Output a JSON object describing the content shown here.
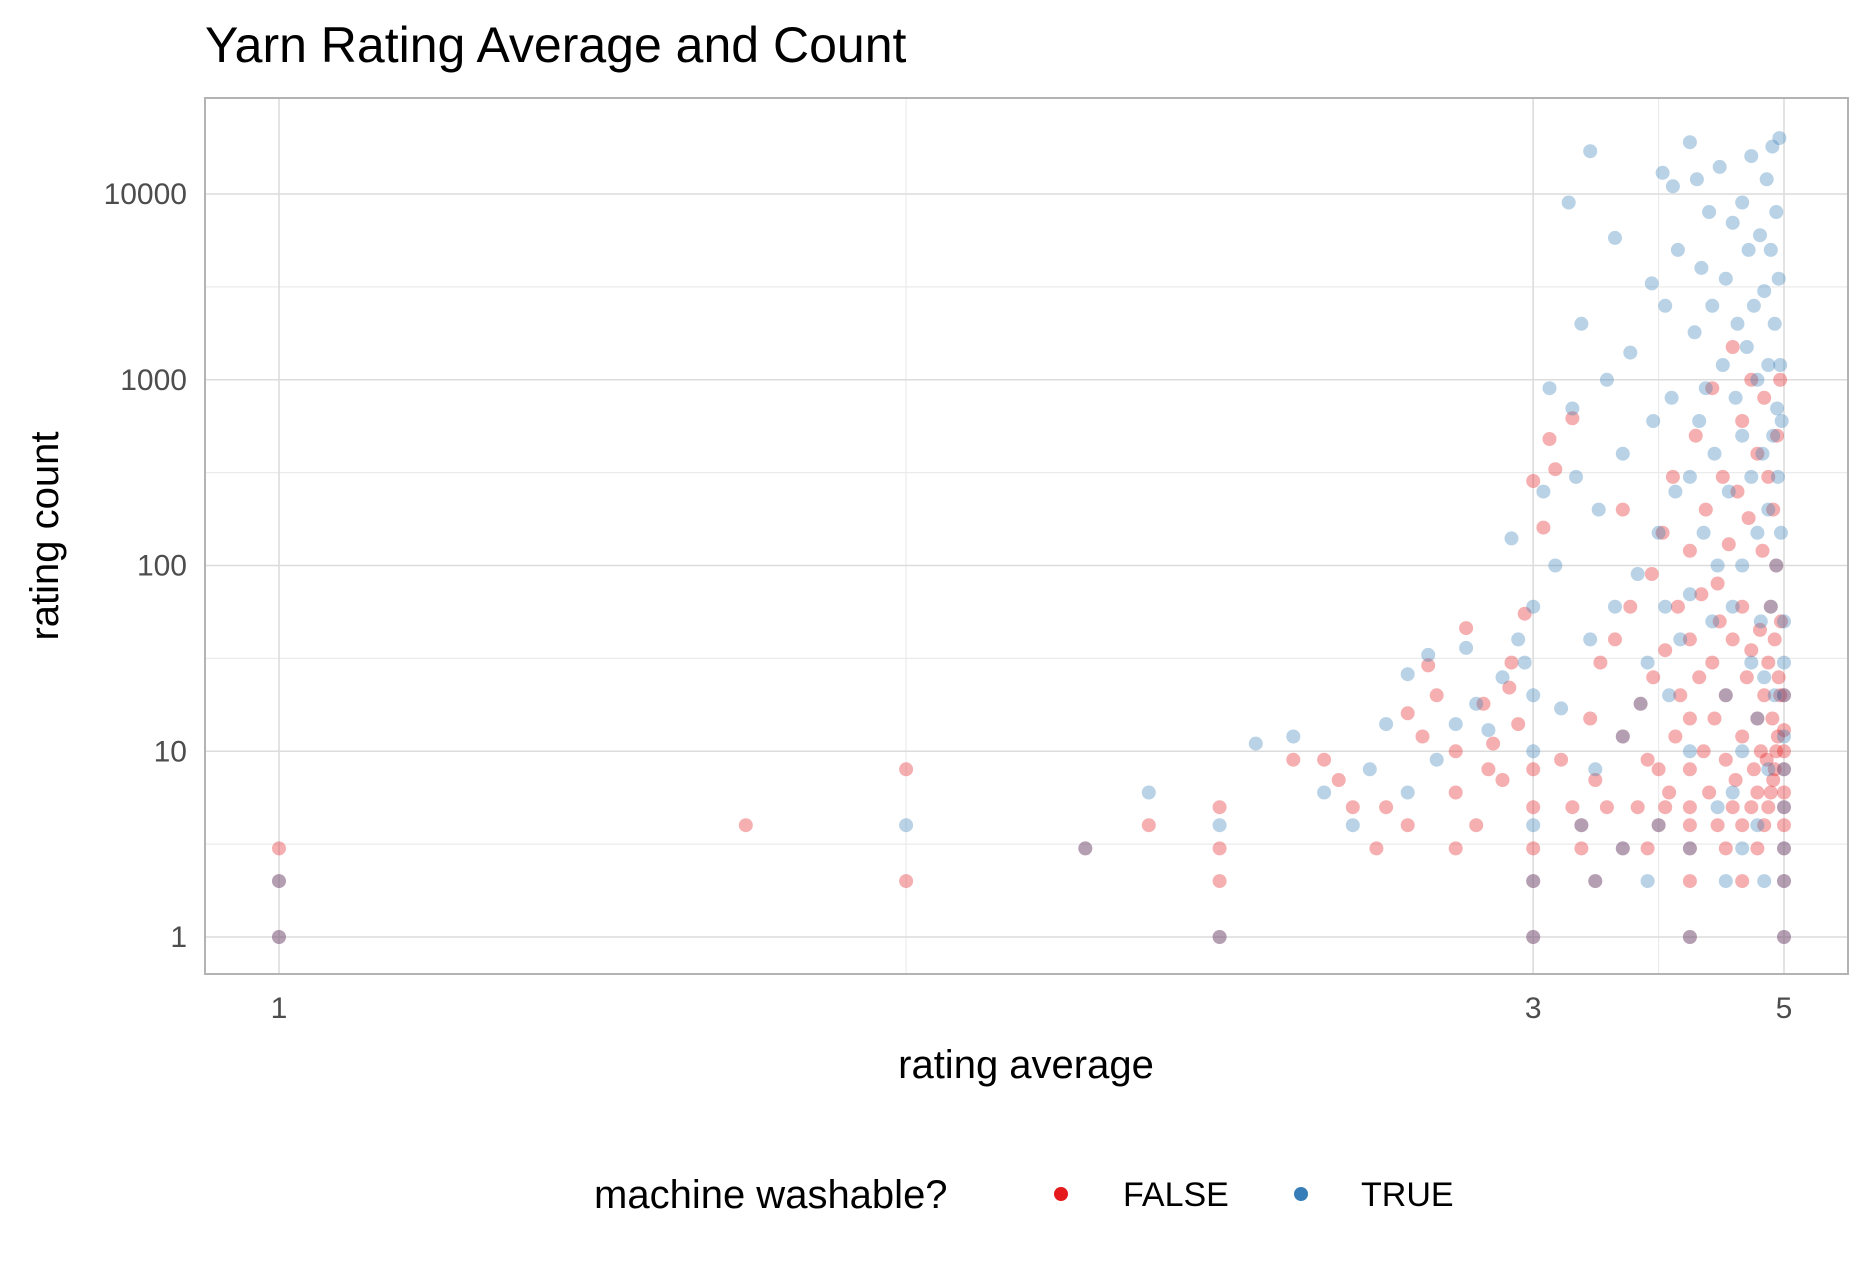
{
  "chart_data": {
    "type": "scatter",
    "title": "Yarn Rating Average and Count",
    "xlabel": "rating average",
    "ylabel": "rating count",
    "x_scale": "reciprocal",
    "y_scale": "log10",
    "xlim": [
      0.85,
      5.15
    ],
    "ylim": [
      0.6,
      30000
    ],
    "x_ticks": [
      1,
      3,
      5
    ],
    "x_tick_labels": [
      "1",
      "3",
      "5"
    ],
    "y_ticks": [
      1,
      10,
      100,
      1000,
      10000
    ],
    "y_tick_labels": [
      "1",
      "10",
      "100",
      "1000",
      "10000"
    ],
    "grid": true,
    "legend_position": "bottom",
    "legend_title": "machine washable?",
    "series": [
      {
        "name": "FALSE",
        "color": "#e41a1c",
        "points": [
          [
            1.0,
            1
          ],
          [
            1.0,
            2
          ],
          [
            1.0,
            3
          ],
          [
            1.33,
            4
          ],
          [
            1.5,
            2
          ],
          [
            1.5,
            8
          ],
          [
            1.75,
            3
          ],
          [
            1.86,
            4
          ],
          [
            2.0,
            1
          ],
          [
            2.0,
            2
          ],
          [
            2.0,
            3
          ],
          [
            2.0,
            5
          ],
          [
            2.17,
            9
          ],
          [
            2.25,
            9
          ],
          [
            2.29,
            7
          ],
          [
            2.33,
            5
          ],
          [
            2.4,
            3
          ],
          [
            2.43,
            5
          ],
          [
            2.5,
            4
          ],
          [
            2.5,
            16
          ],
          [
            2.55,
            12
          ],
          [
            2.57,
            29
          ],
          [
            2.6,
            20
          ],
          [
            2.67,
            3
          ],
          [
            2.67,
            6
          ],
          [
            2.67,
            10
          ],
          [
            2.71,
            46
          ],
          [
            2.75,
            4
          ],
          [
            2.78,
            18
          ],
          [
            2.8,
            8
          ],
          [
            2.82,
            11
          ],
          [
            2.86,
            7
          ],
          [
            2.89,
            22
          ],
          [
            2.9,
            30
          ],
          [
            2.93,
            14
          ],
          [
            2.96,
            55
          ],
          [
            3.0,
            1
          ],
          [
            3.0,
            2
          ],
          [
            3.0,
            3
          ],
          [
            3.0,
            5
          ],
          [
            3.0,
            8
          ],
          [
            3.0,
            285
          ],
          [
            3.05,
            160
          ],
          [
            3.08,
            480
          ],
          [
            3.11,
            330
          ],
          [
            3.14,
            9
          ],
          [
            3.2,
            5
          ],
          [
            3.2,
            620
          ],
          [
            3.25,
            3
          ],
          [
            3.25,
            4
          ],
          [
            3.3,
            15
          ],
          [
            3.33,
            2
          ],
          [
            3.33,
            7
          ],
          [
            3.36,
            30
          ],
          [
            3.4,
            5
          ],
          [
            3.45,
            40
          ],
          [
            3.5,
            3
          ],
          [
            3.5,
            12
          ],
          [
            3.5,
            200
          ],
          [
            3.55,
            60
          ],
          [
            3.6,
            5
          ],
          [
            3.62,
            18
          ],
          [
            3.67,
            3
          ],
          [
            3.67,
            9
          ],
          [
            3.7,
            90
          ],
          [
            3.71,
            25
          ],
          [
            3.75,
            4
          ],
          [
            3.75,
            8
          ],
          [
            3.78,
            150
          ],
          [
            3.8,
            5
          ],
          [
            3.8,
            35
          ],
          [
            3.83,
            6
          ],
          [
            3.86,
            300
          ],
          [
            3.88,
            12
          ],
          [
            3.9,
            60
          ],
          [
            3.92,
            20
          ],
          [
            4.0,
            1
          ],
          [
            4.0,
            2
          ],
          [
            4.0,
            3
          ],
          [
            4.0,
            4
          ],
          [
            4.0,
            5
          ],
          [
            4.0,
            8
          ],
          [
            4.0,
            15
          ],
          [
            4.0,
            40
          ],
          [
            4.0,
            120
          ],
          [
            4.05,
            500
          ],
          [
            4.08,
            25
          ],
          [
            4.1,
            70
          ],
          [
            4.12,
            10
          ],
          [
            4.14,
            200
          ],
          [
            4.17,
            6
          ],
          [
            4.2,
            30
          ],
          [
            4.2,
            900
          ],
          [
            4.22,
            15
          ],
          [
            4.25,
            4
          ],
          [
            4.25,
            80
          ],
          [
            4.27,
            50
          ],
          [
            4.3,
            300
          ],
          [
            4.33,
            3
          ],
          [
            4.33,
            9
          ],
          [
            4.33,
            20
          ],
          [
            4.36,
            130
          ],
          [
            4.4,
            5
          ],
          [
            4.4,
            40
          ],
          [
            4.4,
            1500
          ],
          [
            4.43,
            7
          ],
          [
            4.45,
            250
          ],
          [
            4.5,
            2
          ],
          [
            4.5,
            4
          ],
          [
            4.5,
            12
          ],
          [
            4.5,
            60
          ],
          [
            4.5,
            600
          ],
          [
            4.55,
            25
          ],
          [
            4.57,
            180
          ],
          [
            4.6,
            5
          ],
          [
            4.6,
            35
          ],
          [
            4.6,
            1000
          ],
          [
            4.63,
            8
          ],
          [
            4.67,
            3
          ],
          [
            4.67,
            6
          ],
          [
            4.67,
            15
          ],
          [
            4.67,
            400
          ],
          [
            4.7,
            45
          ],
          [
            4.71,
            10
          ],
          [
            4.73,
            120
          ],
          [
            4.75,
            4
          ],
          [
            4.75,
            20
          ],
          [
            4.75,
            800
          ],
          [
            4.78,
            9
          ],
          [
            4.8,
            5
          ],
          [
            4.8,
            30
          ],
          [
            4.8,
            300
          ],
          [
            4.83,
            6
          ],
          [
            4.83,
            60
          ],
          [
            4.85,
            15
          ],
          [
            4.86,
            7
          ],
          [
            4.86,
            200
          ],
          [
            4.88,
            8
          ],
          [
            4.88,
            40
          ],
          [
            4.9,
            10
          ],
          [
            4.9,
            100
          ],
          [
            4.91,
            500
          ],
          [
            4.92,
            12
          ],
          [
            4.93,
            25
          ],
          [
            4.95,
            20
          ],
          [
            4.95,
            1000
          ],
          [
            4.96,
            50
          ],
          [
            5.0,
            1
          ],
          [
            5.0,
            2
          ],
          [
            5.0,
            3
          ],
          [
            5.0,
            4
          ],
          [
            5.0,
            5
          ],
          [
            5.0,
            6
          ],
          [
            5.0,
            8
          ],
          [
            5.0,
            10
          ],
          [
            5.0,
            13
          ],
          [
            5.0,
            20
          ]
        ]
      },
      {
        "name": "TRUE",
        "color": "#377eb8",
        "points": [
          [
            1.0,
            1
          ],
          [
            1.0,
            2
          ],
          [
            1.75,
            3
          ],
          [
            1.86,
            6
          ],
          [
            1.5,
            4
          ],
          [
            2.0,
            1
          ],
          [
            2.0,
            4
          ],
          [
            2.08,
            11
          ],
          [
            2.17,
            12
          ],
          [
            2.25,
            6
          ],
          [
            2.33,
            4
          ],
          [
            2.38,
            8
          ],
          [
            2.43,
            14
          ],
          [
            2.5,
            6
          ],
          [
            2.5,
            26
          ],
          [
            2.57,
            33
          ],
          [
            2.6,
            9
          ],
          [
            2.67,
            14
          ],
          [
            2.71,
            36
          ],
          [
            2.75,
            18
          ],
          [
            2.8,
            13
          ],
          [
            2.86,
            25
          ],
          [
            2.9,
            140
          ],
          [
            2.93,
            40
          ],
          [
            2.96,
            30
          ],
          [
            3.0,
            1
          ],
          [
            3.0,
            2
          ],
          [
            3.0,
            4
          ],
          [
            3.0,
            10
          ],
          [
            3.0,
            20
          ],
          [
            3.0,
            60
          ],
          [
            3.05,
            250
          ],
          [
            3.08,
            900
          ],
          [
            3.11,
            100
          ],
          [
            3.14,
            17
          ],
          [
            3.18,
            9000
          ],
          [
            3.2,
            700
          ],
          [
            3.22,
            300
          ],
          [
            3.25,
            4
          ],
          [
            3.25,
            2000
          ],
          [
            3.3,
            40
          ],
          [
            3.3,
            17000
          ],
          [
            3.33,
            2
          ],
          [
            3.33,
            8
          ],
          [
            3.35,
            200
          ],
          [
            3.4,
            1000
          ],
          [
            3.45,
            60
          ],
          [
            3.45,
            5800
          ],
          [
            3.5,
            3
          ],
          [
            3.5,
            12
          ],
          [
            3.5,
            400
          ],
          [
            3.55,
            1400
          ],
          [
            3.6,
            90
          ],
          [
            3.62,
            18
          ],
          [
            3.67,
            2
          ],
          [
            3.67,
            30
          ],
          [
            3.7,
            3300
          ],
          [
            3.71,
            600
          ],
          [
            3.75,
            4
          ],
          [
            3.75,
            150
          ],
          [
            3.78,
            13000
          ],
          [
            3.8,
            60
          ],
          [
            3.8,
            2500
          ],
          [
            3.83,
            20
          ],
          [
            3.85,
            800
          ],
          [
            3.86,
            11000
          ],
          [
            3.88,
            250
          ],
          [
            3.9,
            5000
          ],
          [
            3.92,
            40
          ],
          [
            4.0,
            1
          ],
          [
            4.0,
            3
          ],
          [
            4.0,
            10
          ],
          [
            4.0,
            70
          ],
          [
            4.0,
            300
          ],
          [
            4.0,
            19000
          ],
          [
            4.04,
            1800
          ],
          [
            4.06,
            12000
          ],
          [
            4.08,
            600
          ],
          [
            4.1,
            4000
          ],
          [
            4.12,
            150
          ],
          [
            4.14,
            900
          ],
          [
            4.17,
            8000
          ],
          [
            4.2,
            50
          ],
          [
            4.2,
            2500
          ],
          [
            4.22,
            400
          ],
          [
            4.25,
            5
          ],
          [
            4.25,
            100
          ],
          [
            4.27,
            14000
          ],
          [
            4.3,
            1200
          ],
          [
            4.33,
            2
          ],
          [
            4.33,
            20
          ],
          [
            4.33,
            3500
          ],
          [
            4.36,
            250
          ],
          [
            4.4,
            6
          ],
          [
            4.4,
            60
          ],
          [
            4.4,
            7000
          ],
          [
            4.43,
            800
          ],
          [
            4.45,
            2000
          ],
          [
            4.5,
            3
          ],
          [
            4.5,
            10
          ],
          [
            4.5,
            100
          ],
          [
            4.5,
            500
          ],
          [
            4.5,
            9000
          ],
          [
            4.55,
            1500
          ],
          [
            4.57,
            5000
          ],
          [
            4.6,
            30
          ],
          [
            4.6,
            300
          ],
          [
            4.6,
            16000
          ],
          [
            4.63,
            2500
          ],
          [
            4.67,
            4
          ],
          [
            4.67,
            15
          ],
          [
            4.67,
            150
          ],
          [
            4.67,
            1000
          ],
          [
            4.7,
            6000
          ],
          [
            4.71,
            50
          ],
          [
            4.73,
            400
          ],
          [
            4.75,
            2
          ],
          [
            4.75,
            25
          ],
          [
            4.75,
            3000
          ],
          [
            4.78,
            12000
          ],
          [
            4.8,
            8
          ],
          [
            4.8,
            200
          ],
          [
            4.8,
            1200
          ],
          [
            4.83,
            60
          ],
          [
            4.83,
            5000
          ],
          [
            4.85,
            18000
          ],
          [
            4.86,
            500
          ],
          [
            4.88,
            20
          ],
          [
            4.88,
            2000
          ],
          [
            4.9,
            100
          ],
          [
            4.9,
            8000
          ],
          [
            4.91,
            700
          ],
          [
            4.92,
            300
          ],
          [
            4.93,
            3500
          ],
          [
            4.94,
            20000
          ],
          [
            4.95,
            1200
          ],
          [
            4.96,
            150
          ],
          [
            4.97,
            600
          ],
          [
            5.0,
            1
          ],
          [
            5.0,
            2
          ],
          [
            5.0,
            3
          ],
          [
            5.0,
            5
          ],
          [
            5.0,
            8
          ],
          [
            5.0,
            12
          ],
          [
            5.0,
            20
          ],
          [
            5.0,
            30
          ],
          [
            5.0,
            50
          ]
        ]
      }
    ]
  }
}
